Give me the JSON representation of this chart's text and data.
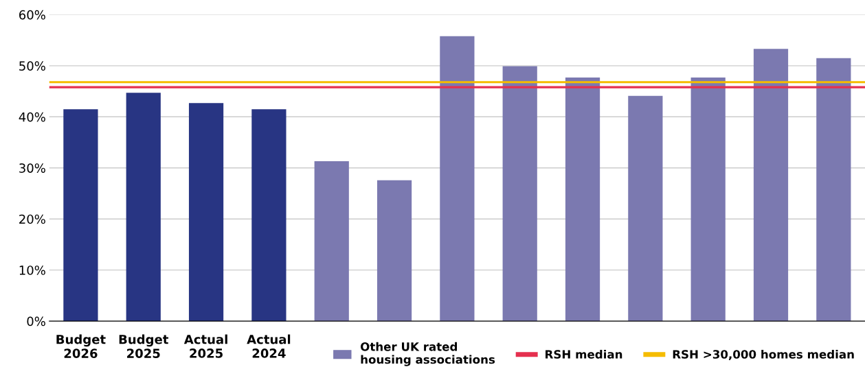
{
  "chart_data": {
    "type": "bar",
    "categories": [
      "Budget\n2026",
      "Budget\n2025",
      "Actual\n2025",
      "Actual\n2024",
      null,
      null,
      null,
      null,
      null,
      null,
      null,
      null,
      null
    ],
    "series": [
      {
        "color": "#283583",
        "values": [
          41.5,
          44.7,
          42.7,
          41.5,
          null,
          null,
          null,
          null,
          null,
          null,
          null,
          null,
          null
        ]
      },
      {
        "name": "Other UK rated\nhousing associations",
        "color": "#7b79b0",
        "values": [
          null,
          null,
          null,
          null,
          31.3,
          27.6,
          55.8,
          49.9,
          47.7,
          44.1,
          47.7,
          53.3,
          51.5
        ]
      }
    ],
    "ylim": [
      0,
      60
    ],
    "yticks": [
      {
        "value": 0,
        "label": "0%"
      },
      {
        "value": 10,
        "label": "10%"
      },
      {
        "value": 20,
        "label": "20%"
      },
      {
        "value": 30,
        "label": "30%"
      },
      {
        "value": 40,
        "label": "40%"
      },
      {
        "value": 50,
        "label": "50%"
      },
      {
        "value": 60,
        "label": "60%"
      }
    ],
    "ref_lines": [
      {
        "axis": "y",
        "value": 45.8,
        "label": "RSH median",
        "color": "#e5304f"
      },
      {
        "axis": "y",
        "value": 46.8,
        "label": "RSH >30,000 homes median",
        "color": "#f5bc00"
      }
    ],
    "grid": "y",
    "legend": "bottom right"
  }
}
